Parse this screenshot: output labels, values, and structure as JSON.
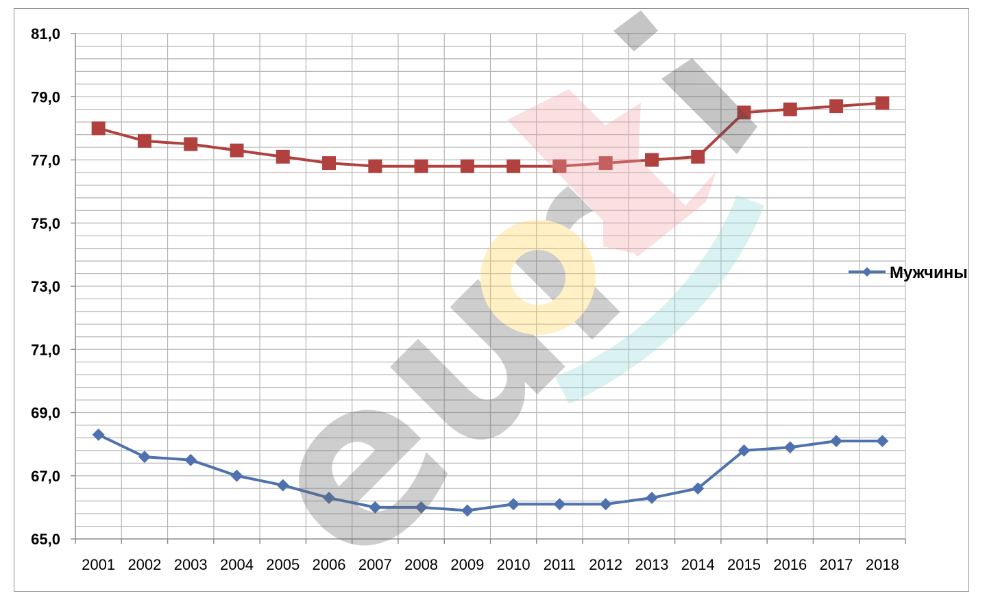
{
  "chart_data": {
    "type": "line",
    "categories": [
      "2001",
      "2002",
      "2003",
      "2004",
      "2005",
      "2006",
      "2007",
      "2008",
      "2009",
      "2010",
      "2011",
      "2012",
      "2013",
      "2014",
      "2015",
      "2016",
      "2017",
      "2018"
    ],
    "ylim": [
      65,
      81
    ],
    "ytick_values": [
      65,
      67,
      69,
      71,
      73,
      75,
      77,
      79,
      81
    ],
    "ytick_labels": [
      "65,0",
      "67,0",
      "69,0",
      "71,0",
      "73,0",
      "75,0",
      "77,0",
      "79,0",
      "81,0"
    ],
    "grid": true,
    "legend_position": "right",
    "series": [
      {
        "name": "Мужчины",
        "color": "#4F72AE",
        "marker": "diamond",
        "values": [
          68.3,
          67.6,
          67.5,
          67.0,
          66.7,
          66.3,
          66.0,
          66.0,
          65.9,
          66.1,
          66.1,
          66.1,
          66.3,
          66.6,
          67.8,
          67.9,
          68.1,
          68.1
        ]
      },
      {
        "color": "#B0413E",
        "marker": "square",
        "values": [
          78.0,
          77.6,
          77.5,
          77.3,
          77.1,
          76.9,
          76.8,
          76.8,
          76.8,
          76.8,
          76.8,
          76.9,
          77.0,
          77.1,
          78.5,
          78.6,
          78.7,
          78.8
        ]
      }
    ]
  },
  "legend": {
    "label": "Мужчины"
  },
  "watermark": {
    "text": "eurokI"
  }
}
